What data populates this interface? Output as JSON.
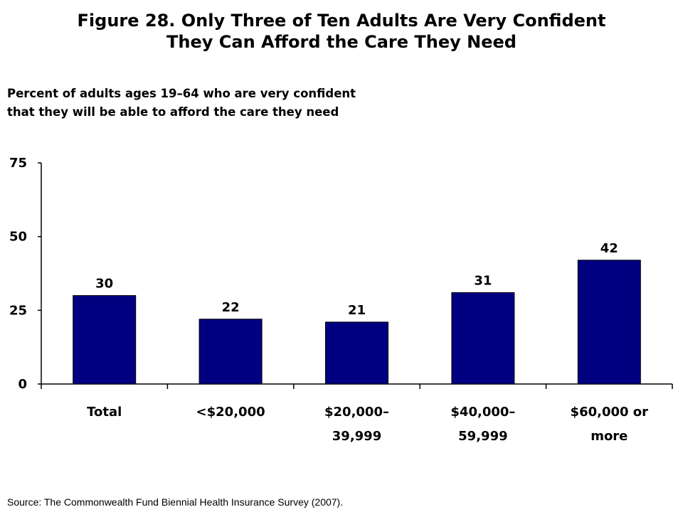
{
  "header": {
    "title_line1": "Figure 28. Only Three of Ten Adults Are Very Confident",
    "title_line2": "They Can Afford the Care They Need",
    "subtitle_line1": "Percent of adults ages 19–64 who are very confident",
    "subtitle_line2": "that they will be able to afford the care they need"
  },
  "footer": {
    "source": "Source: The Commonwealth Fund Biennial Health Insurance Survey (2007)."
  },
  "chart_data": {
    "type": "bar",
    "title": "Percent of adults ages 19–64 who are very confident that they will be able to afford the care they need",
    "xlabel": "",
    "ylabel": "",
    "categories": [
      [
        "Total"
      ],
      [
        "<$20,000"
      ],
      [
        "$20,000–",
        "39,999"
      ],
      [
        "$40,000–",
        "59,999"
      ],
      [
        "$60,000 or",
        "more"
      ]
    ],
    "values": [
      30,
      22,
      21,
      31,
      42
    ],
    "data_labels": [
      "30",
      "22",
      "21",
      "31",
      "42"
    ],
    "ylim": [
      0,
      75
    ],
    "yticks": [
      0,
      25,
      50,
      75
    ],
    "grid": false,
    "legend": "none",
    "bar_color": "#000080"
  }
}
